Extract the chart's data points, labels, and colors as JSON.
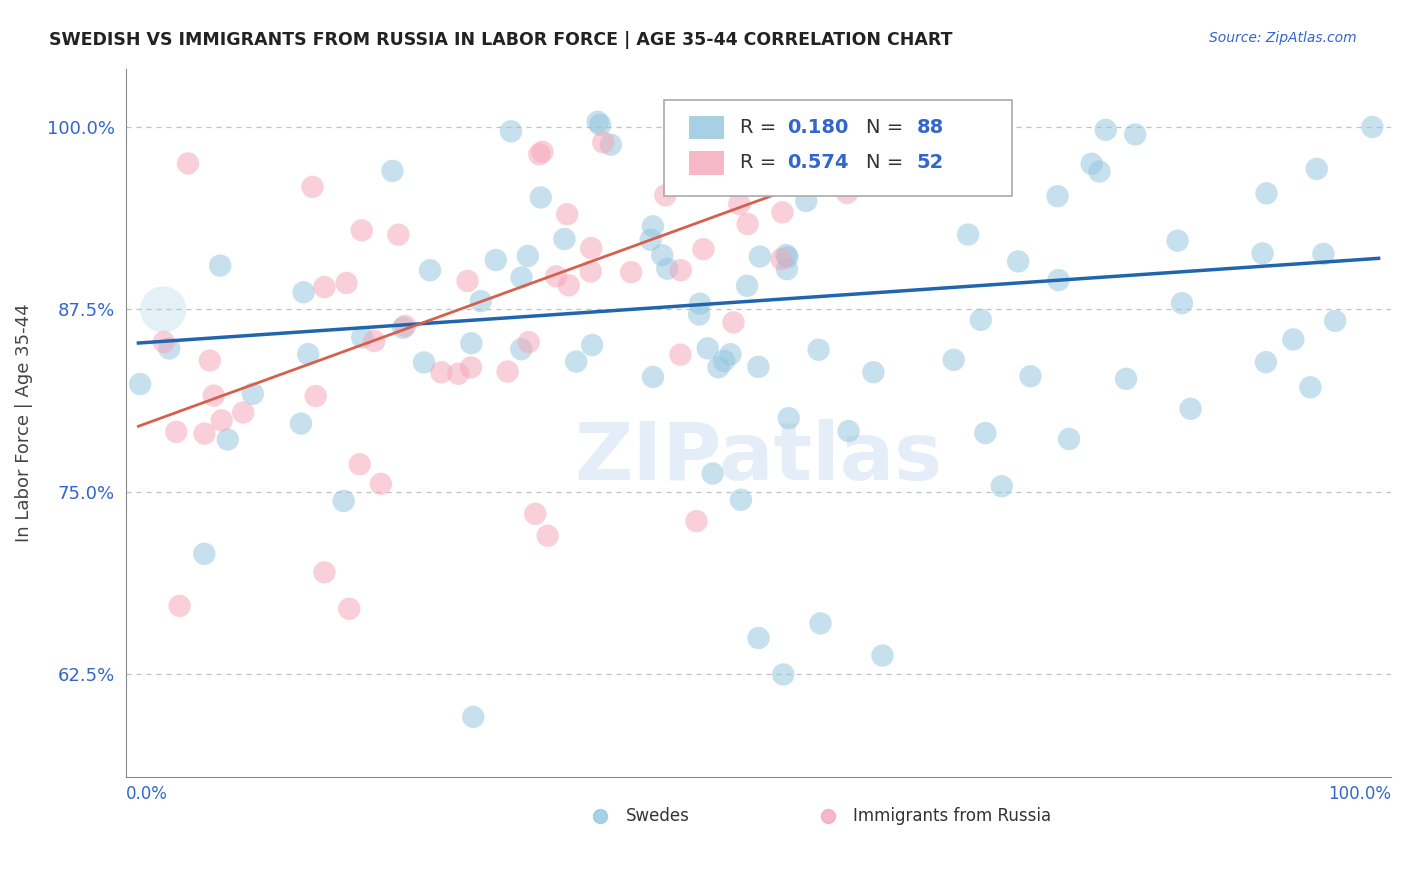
{
  "title": "SWEDISH VS IMMIGRANTS FROM RUSSIA IN LABOR FORCE | AGE 35-44 CORRELATION CHART",
  "source": "Source: ZipAtlas.com",
  "ylabel": "In Labor Force | Age 35-44",
  "blue_color": "#92c5de",
  "pink_color": "#f4a6b8",
  "blue_line_color": "#2166ac",
  "pink_line_color": "#d6604d",
  "blue_R": 0.18,
  "blue_N": 88,
  "pink_R": 0.574,
  "pink_N": 52,
  "xlim": [
    0.0,
    1.0
  ],
  "ylim": [
    0.555,
    1.04
  ],
  "yticks": [
    0.625,
    0.75,
    0.875,
    1.0
  ],
  "ytick_labels": [
    "62.5%",
    "75.0%",
    "87.5%",
    "100.0%"
  ],
  "blue_line_x0": 0.0,
  "blue_line_x1": 1.0,
  "blue_line_y0": 0.852,
  "blue_line_y1": 0.91,
  "pink_line_x0": 0.0,
  "pink_line_x1": 0.55,
  "pink_line_y0": 0.795,
  "pink_line_y1": 0.965
}
